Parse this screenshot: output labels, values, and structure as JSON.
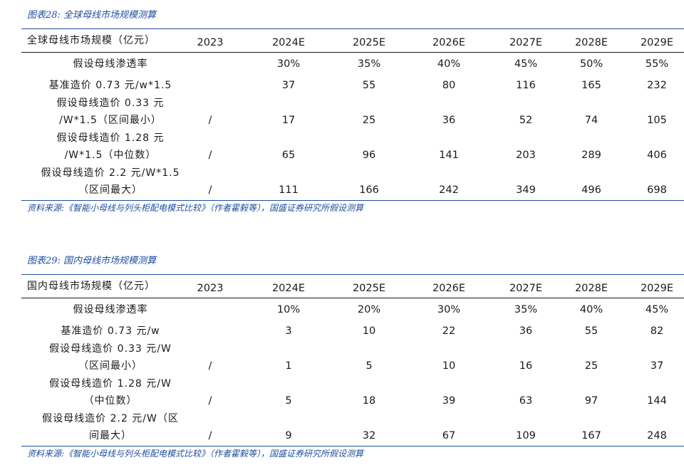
{
  "table1": {
    "caption": "图表28:  全球母线市场规模测算",
    "header": {
      "label": "全球母线市场规模（亿元）",
      "years": [
        "2023",
        "2024E",
        "2025E",
        "2026E",
        "2027E",
        "2028E",
        "2029E"
      ]
    },
    "rows": [
      {
        "label_lines": [
          "假设母线渗透率"
        ],
        "values": [
          "",
          "30%",
          "35%",
          "40%",
          "45%",
          "50%",
          "55%"
        ]
      },
      {
        "label_lines": [
          "基准造价 0.73 元/w*1.5"
        ],
        "values": [
          "",
          "37",
          "55",
          "80",
          "116",
          "165",
          "232"
        ]
      },
      {
        "label_lines": [
          "假设母线造价 0.33 元",
          "/W*1.5（区间最小）"
        ],
        "values": [
          "/",
          "17",
          "25",
          "36",
          "52",
          "74",
          "105"
        ]
      },
      {
        "label_lines": [
          "假设母线造价 1.28 元",
          "/W*1.5（中位数）"
        ],
        "values": [
          "/",
          "65",
          "96",
          "141",
          "203",
          "289",
          "406"
        ]
      },
      {
        "label_lines": [
          "假设母线造价 2.2 元/W*1.5",
          "（区间最大）"
        ],
        "values": [
          "/",
          "111",
          "166",
          "242",
          "349",
          "496",
          "698"
        ]
      }
    ],
    "source": "资料来源:《智能小母线与列头柜配电模式比较》（作者霍毅等），国盛证券研究所假设测算"
  },
  "table2": {
    "caption": "图表29:  国内母线市场规模测算",
    "header": {
      "label": "国内母线市场规模（亿元）",
      "years": [
        "2023",
        "2024E",
        "2025E",
        "2026E",
        "2027E",
        "2028E",
        "2029E"
      ]
    },
    "rows": [
      {
        "label_lines": [
          "假设母线渗透率"
        ],
        "values": [
          "",
          "10%",
          "20%",
          "30%",
          "35%",
          "40%",
          "45%"
        ]
      },
      {
        "label_lines": [
          "基准造价 0.73 元/w"
        ],
        "values": [
          "",
          "3",
          "10",
          "22",
          "36",
          "55",
          "82"
        ]
      },
      {
        "label_lines": [
          "假设母线造价 0.33 元/W",
          "（区间最小）"
        ],
        "values": [
          "/",
          "1",
          "5",
          "10",
          "16",
          "25",
          "37"
        ]
      },
      {
        "label_lines": [
          "假设母线造价 1.28 元/W",
          "（中位数）"
        ],
        "values": [
          "/",
          "5",
          "18",
          "39",
          "63",
          "97",
          "144"
        ]
      },
      {
        "label_lines": [
          "假设母线造价 2.2 元/W（区",
          "间最大）"
        ],
        "values": [
          "/",
          "9",
          "32",
          "67",
          "109",
          "167",
          "248"
        ]
      }
    ],
    "source": "资料来源:《智能小母线与列头柜配电模式比较》（作者霍毅等），国盛证券研究所假设测算"
  }
}
